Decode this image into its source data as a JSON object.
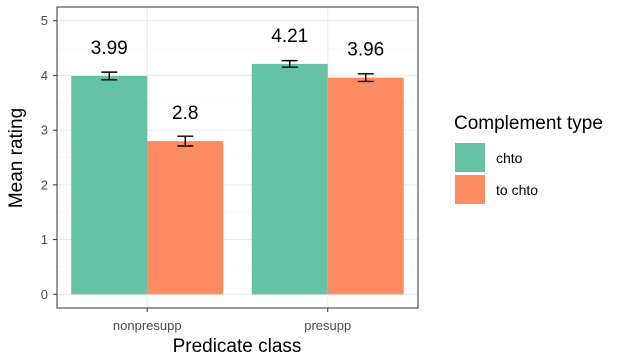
{
  "chart_data": {
    "type": "bar",
    "xlabel": "Predicate class",
    "ylabel": "Mean rating",
    "ylim": [
      0,
      5
    ],
    "yticks": [
      0,
      1,
      2,
      3,
      4,
      5
    ],
    "categories": [
      "nonpresupp",
      "presupp"
    ],
    "series": [
      {
        "name": "chto",
        "color": "#66c2a5",
        "values": [
          3.99,
          4.21
        ],
        "error_low": [
          3.92,
          4.15
        ],
        "error_high": [
          4.06,
          4.27
        ],
        "labels": [
          "3.99",
          "4.21"
        ]
      },
      {
        "name": "to chto",
        "color": "#fc8d62",
        "values": [
          2.8,
          3.96
        ],
        "error_low": [
          2.71,
          3.89
        ],
        "error_high": [
          2.89,
          4.03
        ],
        "labels": [
          "2.8",
          "3.96"
        ]
      }
    ],
    "legend": {
      "title": "Complement type",
      "position": "right"
    },
    "grid": true
  }
}
